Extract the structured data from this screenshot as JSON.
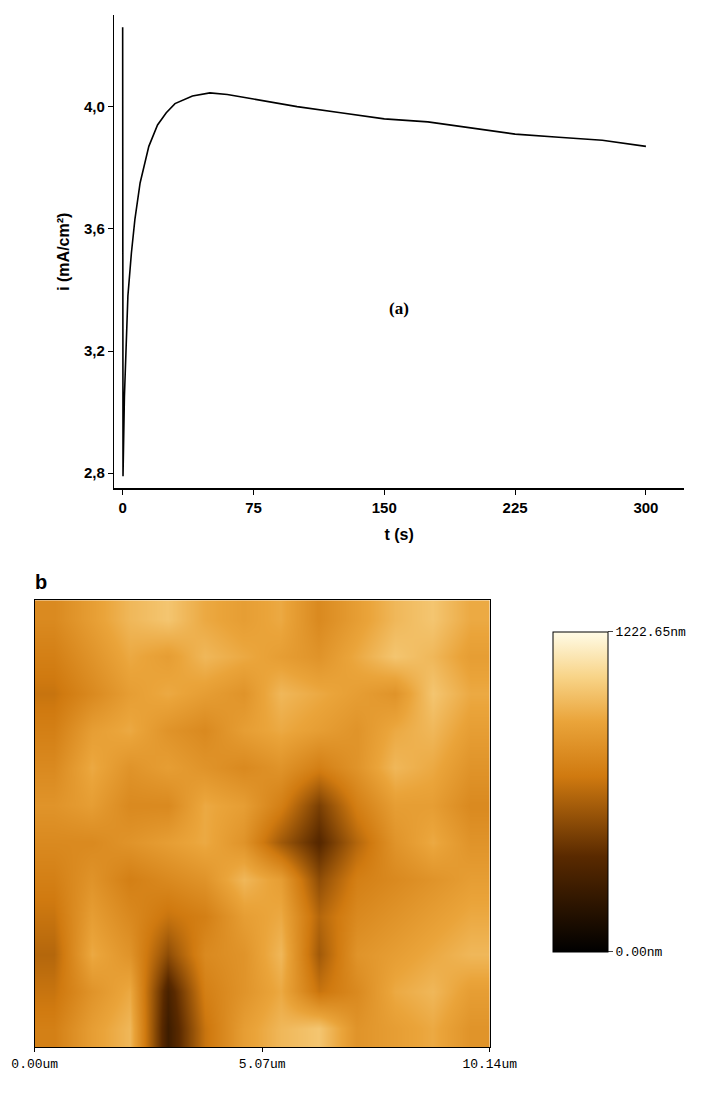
{
  "chart_data": [
    {
      "type": "line",
      "x_label": "t (s)",
      "y_label": "i (mA/cm²)",
      "annotations": [
        "(a)"
      ],
      "color": "#000000",
      "x": [
        0,
        0.2,
        1,
        2,
        3,
        5,
        7,
        10,
        15,
        20,
        25,
        30,
        40,
        50,
        60,
        75,
        100,
        125,
        150,
        175,
        200,
        225,
        250,
        275,
        300
      ],
      "values": [
        4.26,
        2.79,
        3.05,
        3.25,
        3.38,
        3.52,
        3.63,
        3.75,
        3.87,
        3.94,
        3.98,
        4.01,
        4.035,
        4.045,
        4.04,
        4.025,
        4.0,
        3.98,
        3.96,
        3.95,
        3.93,
        3.91,
        3.9,
        3.89,
        3.87
      ],
      "xlim": [
        -5,
        322
      ],
      "ylim": [
        2.75,
        4.3
      ],
      "xticks": [
        0,
        75,
        150,
        225,
        300
      ],
      "yticks": [
        {
          "value": 2.8,
          "label": "2,8"
        },
        {
          "value": 3.2,
          "label": "3,2"
        },
        {
          "value": 3.6,
          "label": "3,6"
        },
        {
          "value": 4.0,
          "label": "4,0"
        }
      ],
      "grid": false
    },
    {
      "type": "heatmap",
      "label": "b",
      "x": [
        0.42,
        1.27,
        2.11,
        2.96,
        3.8,
        4.65,
        5.49,
        6.34,
        7.18,
        8.03,
        8.87,
        9.72
      ],
      "y": [
        0.42,
        1.27,
        2.11,
        2.96,
        3.8,
        4.65,
        5.49,
        6.34,
        7.18,
        8.03,
        8.87,
        9.72
      ],
      "z": [
        [
          700,
          850,
          950,
          250,
          650,
          850,
          950,
          1000,
          800,
          850,
          900,
          800
        ],
        [
          650,
          800,
          900,
          300,
          700,
          800,
          900,
          650,
          750,
          900,
          950,
          850
        ],
        [
          600,
          900,
          800,
          500,
          750,
          800,
          950,
          550,
          800,
          850,
          900,
          950
        ],
        [
          650,
          850,
          750,
          650,
          700,
          850,
          900,
          600,
          750,
          800,
          850,
          900
        ],
        [
          700,
          800,
          700,
          750,
          800,
          950,
          850,
          500,
          700,
          750,
          800,
          850
        ],
        [
          750,
          750,
          800,
          850,
          900,
          800,
          550,
          350,
          600,
          800,
          900,
          800
        ],
        [
          800,
          850,
          750,
          750,
          900,
          850,
          700,
          450,
          700,
          850,
          850,
          750
        ],
        [
          750,
          900,
          800,
          850,
          800,
          750,
          800,
          700,
          800,
          950,
          900,
          800
        ],
        [
          700,
          850,
          900,
          800,
          750,
          850,
          900,
          850,
          800,
          900,
          950,
          850
        ],
        [
          650,
          750,
          850,
          900,
          850,
          800,
          950,
          900,
          850,
          800,
          1000,
          900
        ],
        [
          700,
          800,
          900,
          850,
          950,
          900,
          850,
          800,
          900,
          1000,
          950,
          850
        ],
        [
          750,
          850,
          950,
          1000,
          900,
          850,
          900,
          750,
          850,
          950,
          1000,
          900
        ]
      ],
      "xlim": [
        0,
        10.14
      ],
      "ylim": [
        0,
        10.14
      ],
      "xticks": [
        {
          "value": 0,
          "label": "0.00um"
        },
        {
          "value": 5.07,
          "label": "5.07um"
        },
        {
          "value": 10.14,
          "label": "10.14um"
        }
      ],
      "tick_labels": "x",
      "zlim": [
        0,
        1222.65
      ],
      "zticks": [
        {
          "value": 0,
          "label": "0.00nm"
        },
        {
          "value": 1222.65,
          "label": "1222.65nm"
        }
      ]
    }
  ]
}
